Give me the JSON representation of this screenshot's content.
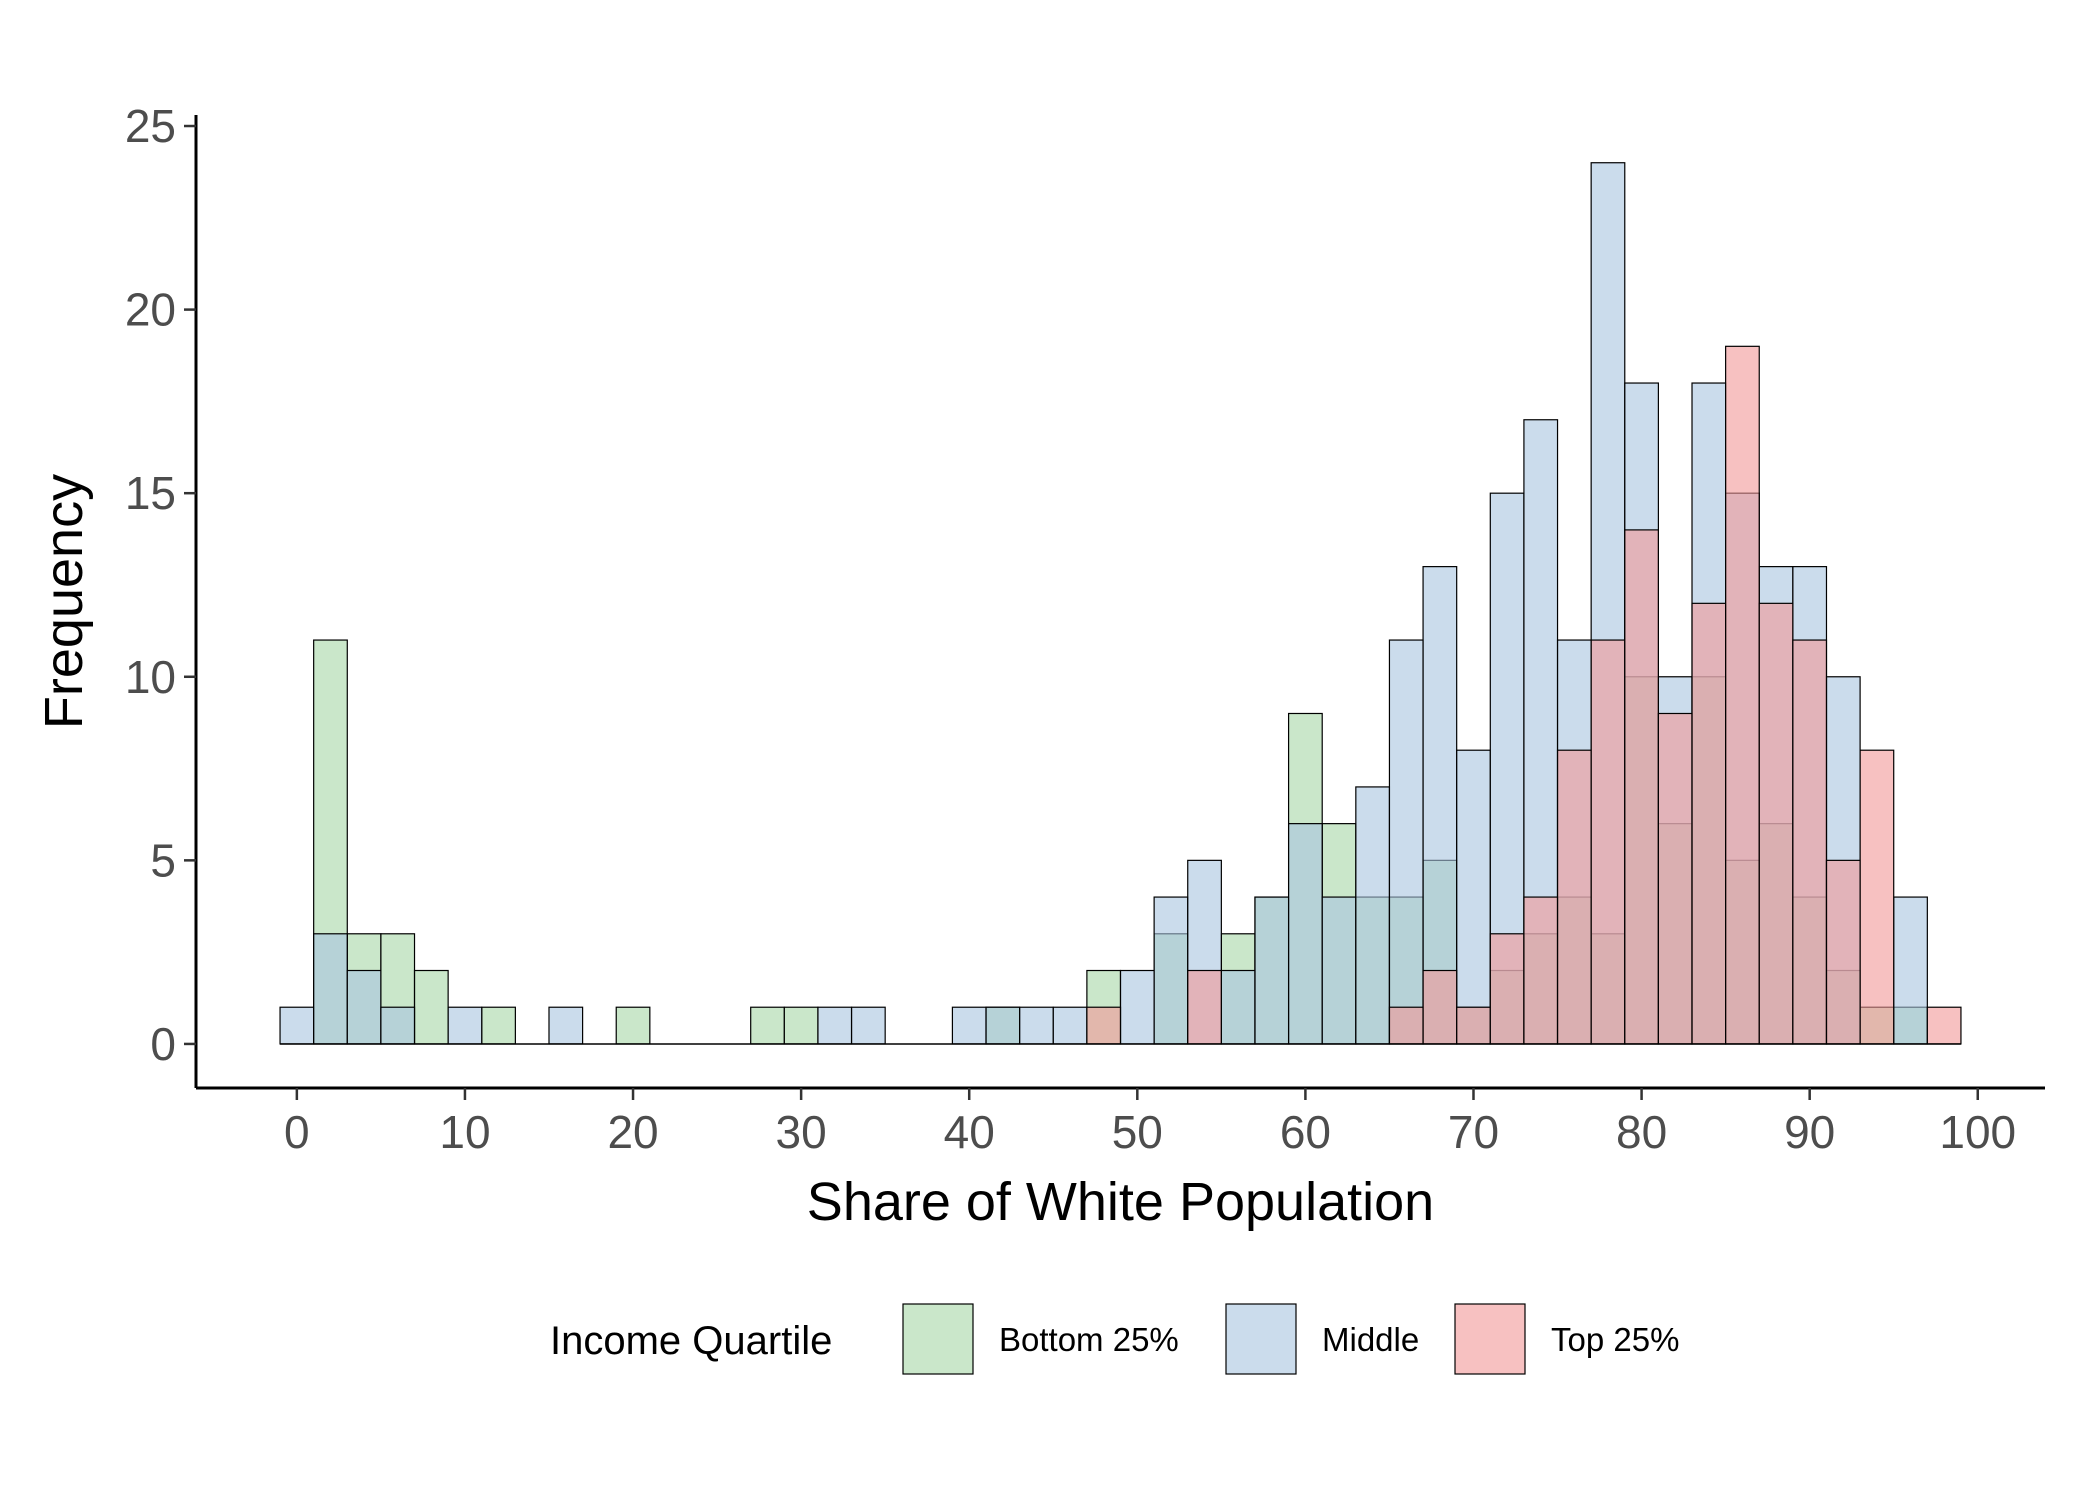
{
  "chart_data": {
    "type": "histogram",
    "title": "",
    "xlabel": "Share of White Population",
    "ylabel": "Frequency",
    "bin_width": 2,
    "xlim": [
      -6,
      104
    ],
    "ylim": [
      -1.2,
      25.3
    ],
    "xticks": [
      0,
      10,
      20,
      30,
      40,
      50,
      60,
      70,
      80,
      90,
      100
    ],
    "yticks": [
      0,
      5,
      10,
      15,
      20,
      25
    ],
    "grid": false,
    "legend": {
      "title": "Income Quartile",
      "position": "bottom"
    },
    "series": [
      {
        "name": "Bottom 25%",
        "color": "#a6d7a6",
        "bins": [
          [
            2,
            11
          ],
          [
            4,
            3
          ],
          [
            6,
            3
          ],
          [
            8,
            2
          ],
          [
            12,
            1
          ],
          [
            20,
            1
          ],
          [
            28,
            1
          ],
          [
            30,
            1
          ],
          [
            42,
            1
          ],
          [
            48,
            2
          ],
          [
            52,
            3
          ],
          [
            56,
            3
          ],
          [
            58,
            4
          ],
          [
            60,
            9
          ],
          [
            62,
            6
          ],
          [
            64,
            4
          ],
          [
            66,
            4
          ],
          [
            68,
            5
          ],
          [
            70,
            1
          ],
          [
            72,
            2
          ],
          [
            74,
            3
          ],
          [
            76,
            4
          ],
          [
            78,
            3
          ],
          [
            80,
            10
          ],
          [
            82,
            6
          ],
          [
            84,
            10
          ],
          [
            86,
            5
          ],
          [
            88,
            6
          ],
          [
            90,
            4
          ],
          [
            92,
            2
          ],
          [
            94,
            1
          ],
          [
            96,
            1
          ]
        ]
      },
      {
        "name": "Middle",
        "color": "#a8c5df",
        "bins": [
          [
            0,
            1
          ],
          [
            2,
            3
          ],
          [
            4,
            2
          ],
          [
            6,
            1
          ],
          [
            10,
            1
          ],
          [
            16,
            1
          ],
          [
            32,
            1
          ],
          [
            34,
            1
          ],
          [
            40,
            1
          ],
          [
            42,
            1
          ],
          [
            44,
            1
          ],
          [
            46,
            1
          ],
          [
            50,
            2
          ],
          [
            52,
            4
          ],
          [
            54,
            5
          ],
          [
            56,
            2
          ],
          [
            58,
            4
          ],
          [
            60,
            6
          ],
          [
            62,
            4
          ],
          [
            64,
            7
          ],
          [
            66,
            11
          ],
          [
            68,
            13
          ],
          [
            70,
            8
          ],
          [
            72,
            15
          ],
          [
            74,
            17
          ],
          [
            76,
            11
          ],
          [
            78,
            24
          ],
          [
            80,
            18
          ],
          [
            82,
            10
          ],
          [
            84,
            18
          ],
          [
            86,
            15
          ],
          [
            88,
            13
          ],
          [
            90,
            13
          ],
          [
            92,
            10
          ],
          [
            96,
            4
          ]
        ]
      },
      {
        "name": "Top 25%",
        "color": "#f29898",
        "bins": [
          [
            48,
            1
          ],
          [
            54,
            2
          ],
          [
            66,
            1
          ],
          [
            68,
            2
          ],
          [
            70,
            1
          ],
          [
            72,
            3
          ],
          [
            74,
            4
          ],
          [
            76,
            8
          ],
          [
            78,
            11
          ],
          [
            80,
            14
          ],
          [
            82,
            9
          ],
          [
            84,
            12
          ],
          [
            86,
            19
          ],
          [
            88,
            12
          ],
          [
            90,
            11
          ],
          [
            92,
            5
          ],
          [
            94,
            8
          ],
          [
            98,
            1
          ]
        ]
      }
    ]
  }
}
